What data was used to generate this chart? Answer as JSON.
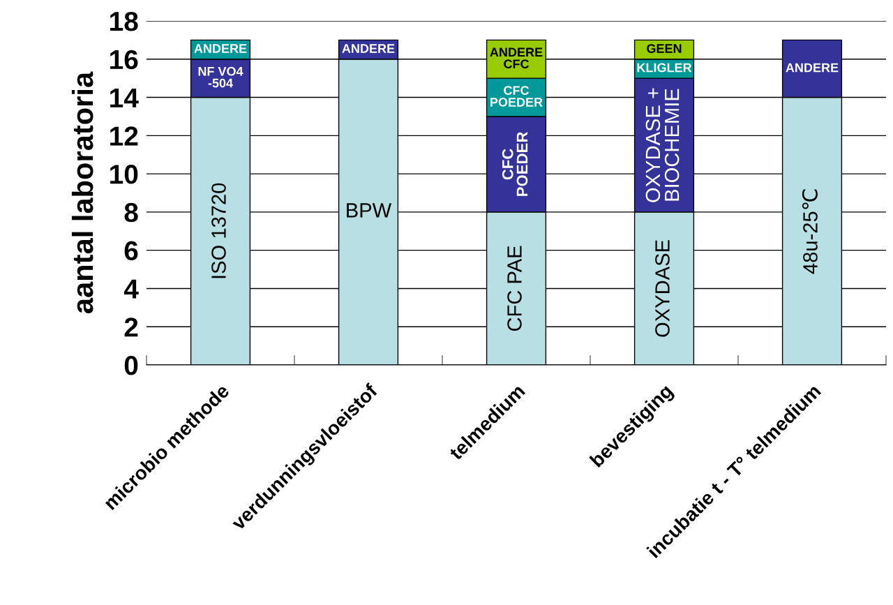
{
  "chart_data": {
    "type": "bar",
    "stacked": true,
    "ylabel": "aantal laboratoria",
    "categories": [
      "microbio methode",
      "verdunningsvloeistof",
      "telmedium",
      "bevestiging",
      "incubatie t - T° telmedium"
    ],
    "series": [
      {
        "name": "ISO 13720",
        "color": "#b8e0e4",
        "values": [
          14,
          null,
          null,
          null,
          null
        ]
      },
      {
        "name": "NF VO4\n-504",
        "color": "#333399",
        "values": [
          2,
          null,
          null,
          null,
          null
        ]
      },
      {
        "name": "ANDERE",
        "color": "#009999",
        "values": [
          1,
          null,
          null,
          null,
          null
        ]
      },
      {
        "name": "BPW",
        "color": "#b8e0e4",
        "values": [
          null,
          16,
          null,
          null,
          null
        ]
      },
      {
        "name": "ANDERE",
        "color": "#333399",
        "values": [
          null,
          1,
          null,
          null,
          null
        ]
      },
      {
        "name": "CFC PAE",
        "color": "#b8e0e4",
        "values": [
          null,
          null,
          8,
          null,
          null
        ]
      },
      {
        "name": "CFC\nPOEDER",
        "color": "#333399",
        "values": [
          null,
          null,
          5,
          null,
          null
        ]
      },
      {
        "name": "CFC\nPOEDER",
        "color": "#009999",
        "values": [
          null,
          null,
          2,
          null,
          null
        ]
      },
      {
        "name": "ANDERE\nCFC",
        "color": "#99cc00",
        "values": [
          null,
          null,
          2,
          null,
          null
        ]
      },
      {
        "name": "OXYDASE",
        "color": "#b8e0e4",
        "values": [
          null,
          null,
          null,
          8,
          null
        ]
      },
      {
        "name": "OXYDASE +\nBIOCHEMIE",
        "color": "#333399",
        "values": [
          null,
          null,
          null,
          7,
          null
        ]
      },
      {
        "name": "KLIGLER",
        "color": "#009999",
        "values": [
          null,
          null,
          null,
          1,
          null
        ]
      },
      {
        "name": "GEEN",
        "color": "#99cc00",
        "values": [
          null,
          null,
          null,
          1,
          null
        ]
      },
      {
        "name": "48u-25℃",
        "color": "#b8e0e4",
        "values": [
          null,
          null,
          null,
          null,
          14
        ]
      },
      {
        "name": "ANDERE",
        "color": "#333399",
        "values": [
          null,
          null,
          null,
          null,
          3
        ]
      }
    ],
    "ylim": [
      0,
      18
    ],
    "yticks": [
      0,
      2,
      4,
      6,
      8,
      10,
      12,
      14,
      16,
      18
    ],
    "grid": "y",
    "legend": false
  }
}
